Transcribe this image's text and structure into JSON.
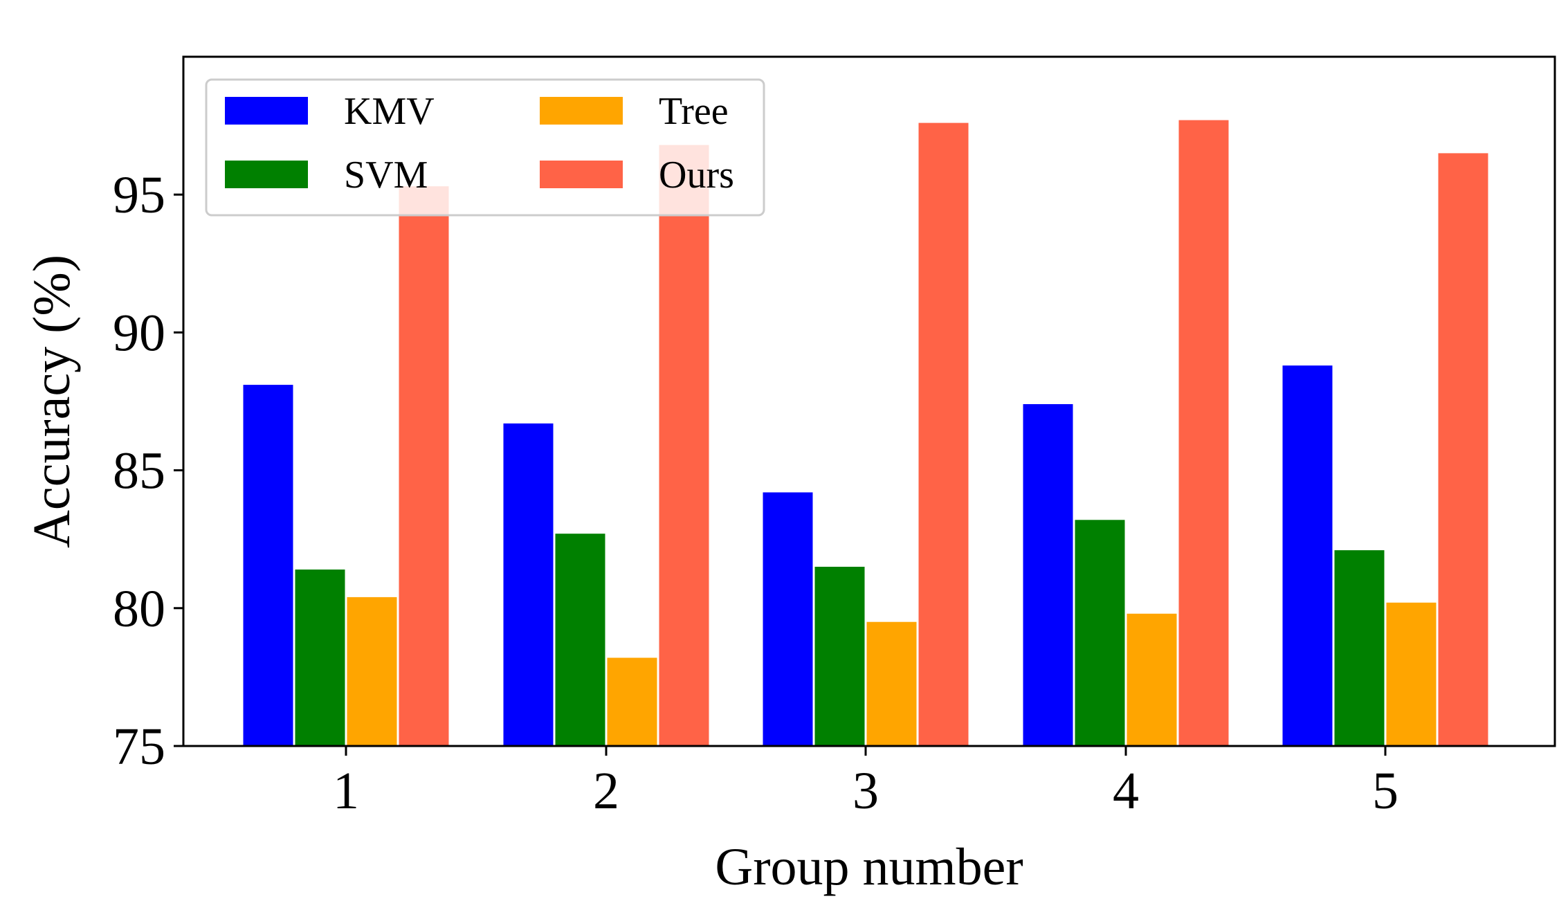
{
  "chart_data": {
    "type": "bar",
    "title": "",
    "xlabel": "Group number",
    "ylabel": "Accuracy (%)",
    "categories": [
      "1",
      "2",
      "3",
      "4",
      "5"
    ],
    "ylim": [
      75,
      100
    ],
    "yticks": [
      "75",
      "80",
      "85",
      "90",
      "95"
    ],
    "grid": false,
    "legend_position": "top-left",
    "legend_columns": 2,
    "series": [
      {
        "name": "KMV",
        "color": "#0000ff",
        "values": [
          88.1,
          86.7,
          84.2,
          87.4,
          88.8
        ]
      },
      {
        "name": "SVM",
        "color": "#008000",
        "values": [
          81.4,
          82.7,
          81.5,
          83.2,
          82.1
        ]
      },
      {
        "name": "Tree",
        "color": "#ffa500",
        "values": [
          80.4,
          78.2,
          79.5,
          79.8,
          80.2
        ]
      },
      {
        "name": "Ours",
        "color": "#ff6347",
        "values": [
          95.3,
          96.8,
          97.6,
          97.7,
          96.5
        ]
      }
    ]
  }
}
